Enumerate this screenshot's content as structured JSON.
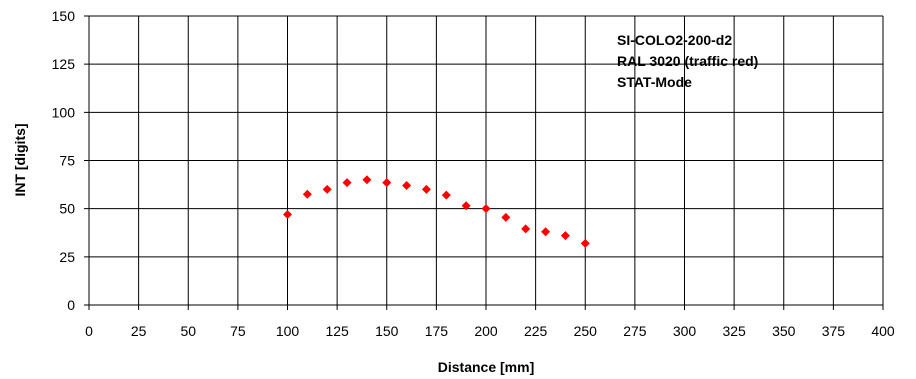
{
  "chart_data": {
    "type": "scatter",
    "title": "",
    "xlabel": "Distance [mm]",
    "ylabel": "INT [digits]",
    "xlim": [
      0,
      400
    ],
    "ylim": [
      0,
      150
    ],
    "xticks": [
      "0",
      "25",
      "50",
      "75",
      "100",
      "125",
      "150",
      "175",
      "200",
      "225",
      "250",
      "275",
      "300",
      "325",
      "350",
      "375",
      "400"
    ],
    "yticks": [
      "0",
      "25",
      "50",
      "75",
      "100",
      "125",
      "150"
    ],
    "grid": true,
    "series": [
      {
        "color": "#ff0000",
        "marker": "diamond",
        "x": [
          100,
          110,
          120,
          130,
          140,
          150,
          160,
          170,
          180,
          190,
          200,
          210,
          220,
          230,
          240,
          250
        ],
        "y": [
          47,
          57.5,
          60,
          63.5,
          65,
          63.5,
          62,
          60,
          57,
          51.5,
          50,
          45.5,
          39.5,
          38,
          36,
          32
        ]
      }
    ],
    "annotations": [
      "SI-COLO2-200-d2",
      "RAL 3020 (traffic red)",
      "STAT-Mode"
    ]
  }
}
